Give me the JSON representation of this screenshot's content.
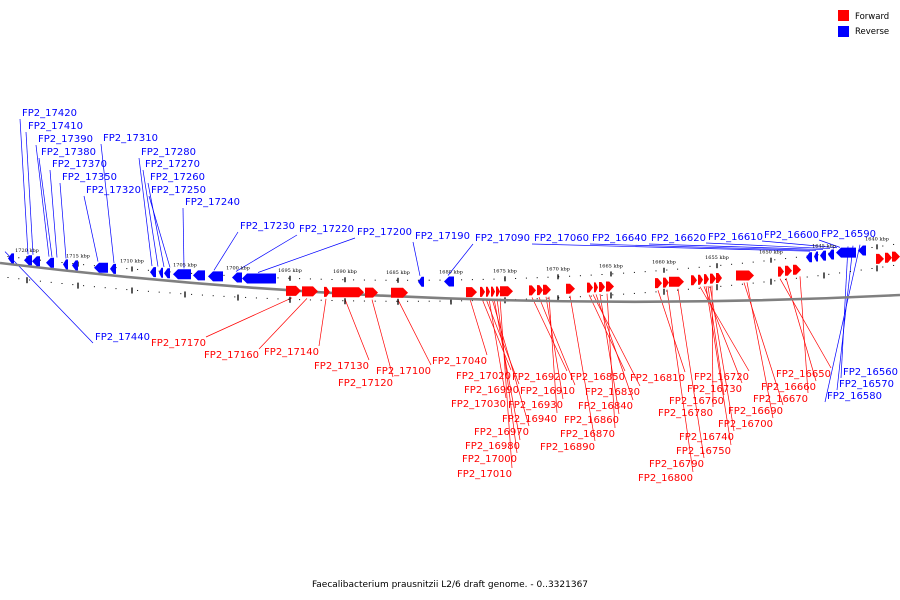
{
  "caption": "Faecalibacterium prausnitzii L2/6 draft genome. - 0..3321367",
  "legend": [
    {
      "label": "Forward",
      "color": "#ff0000"
    },
    {
      "label": "Reverse",
      "color": "#0000ff"
    }
  ],
  "colors": {
    "forward": "#ff0000",
    "reverse": "#0000ff",
    "backbone": "#808080"
  },
  "ticks": [
    "1720 kbp",
    "1715 kbp",
    "1710 kbp",
    "1705 kbp",
    "1700 kbp",
    "1695 kbp",
    "1690 kbp",
    "1685 kbp",
    "1680 kbp",
    "1675 kbp",
    "1670 kbp",
    "1665 kbp",
    "1660 kbp",
    "1655 kbp",
    "1650 kbp",
    "1645 kbp",
    "1640 kbp"
  ],
  "reverse_genes": [
    "FP2_17420",
    "FP2_17410",
    "FP2_17390",
    "FP2_17380",
    "FP2_17370",
    "FP2_17350",
    "FP2_17320",
    "FP2_17310",
    "FP2_17280",
    "FP2_17270",
    "FP2_17260",
    "FP2_17250",
    "FP2_17240",
    "FP2_17230",
    "FP2_17220",
    "FP2_17200",
    "FP2_17190",
    "FP2_17090",
    "FP2_17060",
    "FP2_16640",
    "FP2_16620",
    "FP2_16610",
    "FP2_16600",
    "FP2_16590",
    "FP2_17440",
    "FP2_16560",
    "FP2_16570",
    "FP2_16580"
  ],
  "forward_genes": [
    "FP2_17170",
    "FP2_17160",
    "FP2_17140",
    "FP2_17130",
    "FP2_17120",
    "FP2_17100",
    "FP2_17040",
    "FP2_17020",
    "FP2_16990",
    "FP2_17030",
    "FP2_16970",
    "FP2_16980",
    "FP2_17000",
    "FP2_17010",
    "FP2_16920",
    "FP2_16910",
    "FP2_16930",
    "FP2_16940",
    "FP2_16850",
    "FP2_16830",
    "FP2_16840",
    "FP2_16860",
    "FP2_16870",
    "FP2_16890",
    "FP2_16810",
    "FP2_16720",
    "FP2_16730",
    "FP2_16760",
    "FP2_16780",
    "FP2_16690",
    "FP2_16700",
    "FP2_16740",
    "FP2_16750",
    "FP2_16790",
    "FP2_16800",
    "FP2_16650",
    "FP2_16660",
    "FP2_16670"
  ]
}
